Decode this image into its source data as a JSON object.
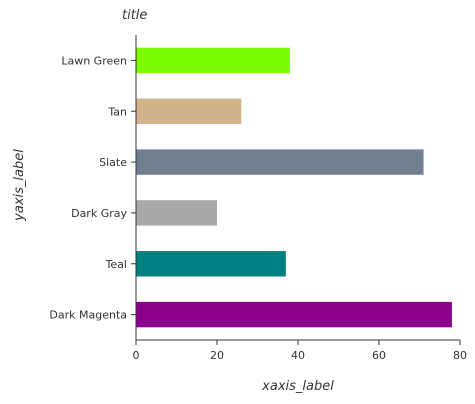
{
  "chart_data": {
    "type": "bar",
    "orientation": "horizontal",
    "title": "title",
    "xlabel": "xaxis_label",
    "ylabel": "yaxis_label",
    "categories": [
      "Dark Magenta",
      "Teal",
      "Dark Gray",
      "Slate",
      "Tan",
      "Lawn Green"
    ],
    "values": [
      78,
      37,
      20,
      71,
      26,
      38
    ],
    "colors": [
      "#8b008b",
      "#008080",
      "#a9a9a9",
      "#708090",
      "#d2b48c",
      "#7cfc00"
    ],
    "xlim": [
      0,
      80
    ],
    "xticks": [
      0,
      20,
      40,
      60,
      80
    ],
    "grid": false,
    "legend": "none",
    "background": "#ffffff"
  }
}
